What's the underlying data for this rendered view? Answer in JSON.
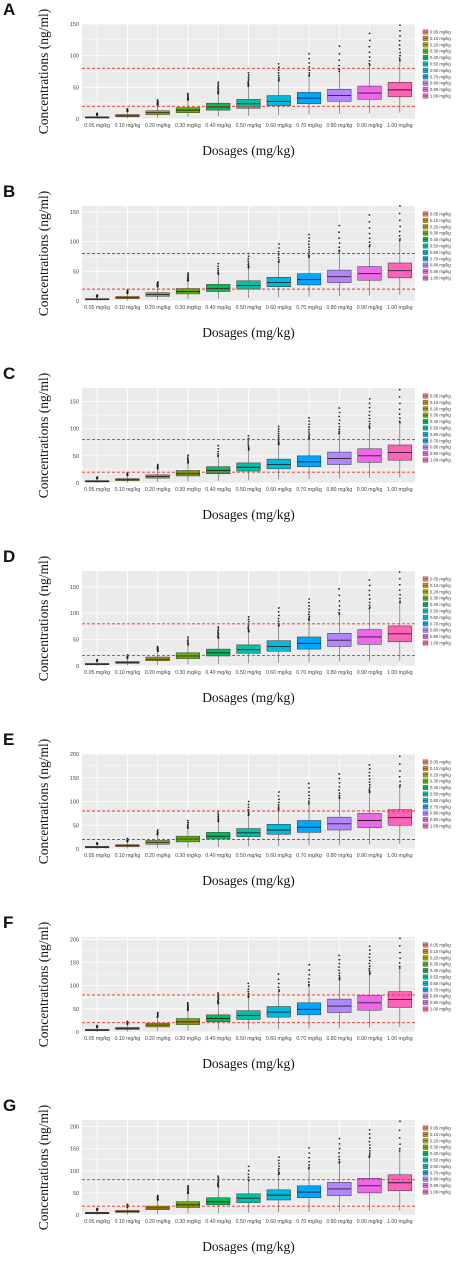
{
  "chart_data": [
    {
      "panel": "A",
      "type": "box",
      "xlabel": "Dosages (mg/kg)",
      "ylabel": "Concentrations (ng/ml)",
      "ylim": [
        0,
        150
      ],
      "yticks": [
        0,
        50,
        100,
        150
      ],
      "ref_lines": [
        20,
        80
      ],
      "categories": [
        "0.05 mg/kg",
        "0.10 mg/kg",
        "0.20 mg/kg",
        "0.30 mg/kg",
        "0.40 mg/kg",
        "0.50 mg/kg",
        "0.60 mg/kg",
        "0.70 mg/kg",
        "0.80 mg/kg",
        "0.90 mg/kg",
        "1.00 mg/kg"
      ],
      "boxes": [
        {
          "q1": 1.5,
          "median": 2.5,
          "q3": 3.5,
          "wlo": 0.5,
          "whi": 6,
          "outmax": 9
        },
        {
          "q1": 3.5,
          "median": 5,
          "q3": 7,
          "wlo": 1,
          "whi": 12,
          "outmax": 16
        },
        {
          "q1": 7,
          "median": 10,
          "q3": 13,
          "wlo": 2,
          "whi": 22,
          "outmax": 30
        },
        {
          "q1": 10,
          "median": 14,
          "q3": 18,
          "wlo": 3,
          "whi": 30,
          "outmax": 40
        },
        {
          "q1": 14,
          "median": 19,
          "q3": 25,
          "wlo": 4,
          "whi": 40,
          "outmax": 58
        },
        {
          "q1": 17,
          "median": 24,
          "q3": 31,
          "wlo": 5,
          "whi": 52,
          "outmax": 73
        },
        {
          "q1": 21,
          "median": 28,
          "q3": 37,
          "wlo": 6,
          "whi": 60,
          "outmax": 87
        },
        {
          "q1": 24,
          "median": 33,
          "q3": 42,
          "wlo": 7,
          "whi": 68,
          "outmax": 103
        },
        {
          "q1": 28,
          "median": 37,
          "q3": 47,
          "wlo": 8,
          "whi": 75,
          "outmax": 115
        },
        {
          "q1": 31,
          "median": 41,
          "q3": 52,
          "wlo": 9,
          "whi": 85,
          "outmax": 135
        },
        {
          "q1": 35,
          "median": 46,
          "q3": 58,
          "wlo": 10,
          "whi": 92,
          "outmax": 148
        }
      ]
    },
    {
      "panel": "B",
      "type": "box",
      "xlabel": "Dosages (mg/kg)",
      "ylabel": "Concentrations (ng/ml)",
      "ylim": [
        0,
        160
      ],
      "yticks": [
        0,
        50,
        100,
        150
      ],
      "ref_lines": [
        20,
        80
      ],
      "categories": [
        "0.05 mg/kg",
        "0.10 mg/kg",
        "0.20 mg/kg",
        "0.30 mg/kg",
        "0.40 mg/kg",
        "0.50 mg/kg",
        "0.60 mg/kg",
        "0.70 mg/kg",
        "0.80 mg/kg",
        "0.90 mg/kg",
        "1.00 mg/kg"
      ],
      "boxes": [
        {
          "q1": 2,
          "median": 3,
          "q3": 4,
          "wlo": 0.5,
          "whi": 7,
          "outmax": 10
        },
        {
          "q1": 4,
          "median": 5.5,
          "q3": 7.5,
          "wlo": 1,
          "whi": 13,
          "outmax": 18
        },
        {
          "q1": 8,
          "median": 11,
          "q3": 14,
          "wlo": 2,
          "whi": 24,
          "outmax": 32
        },
        {
          "q1": 12,
          "median": 16,
          "q3": 21,
          "wlo": 3,
          "whi": 34,
          "outmax": 47
        },
        {
          "q1": 16,
          "median": 21,
          "q3": 28,
          "wlo": 4,
          "whi": 45,
          "outmax": 63
        },
        {
          "q1": 20,
          "median": 26,
          "q3": 34,
          "wlo": 5,
          "whi": 56,
          "outmax": 80
        },
        {
          "q1": 24,
          "median": 31,
          "q3": 40,
          "wlo": 6,
          "whi": 65,
          "outmax": 96
        },
        {
          "q1": 27,
          "median": 36,
          "q3": 46,
          "wlo": 7,
          "whi": 74,
          "outmax": 112
        },
        {
          "q1": 31,
          "median": 41,
          "q3": 52,
          "wlo": 8,
          "whi": 83,
          "outmax": 127
        },
        {
          "q1": 35,
          "median": 46,
          "q3": 58,
          "wlo": 9,
          "whi": 92,
          "outmax": 145
        },
        {
          "q1": 39,
          "median": 51,
          "q3": 64,
          "wlo": 10,
          "whi": 102,
          "outmax": 160
        }
      ]
    },
    {
      "panel": "C",
      "type": "box",
      "xlabel": "Dosages (mg/kg)",
      "ylabel": "Concentrations (ng/ml)",
      "ylim": [
        0,
        175
      ],
      "yticks": [
        0,
        50,
        100,
        150
      ],
      "ref_lines": [
        20,
        80
      ],
      "categories": [
        "0.05 mg/kg",
        "0.10 mg/kg",
        "0.20 mg/kg",
        "0.30 mg/kg",
        "0.40 mg/kg",
        "0.50 mg/kg",
        "0.60 mg/kg",
        "0.70 mg/kg",
        "0.80 mg/kg",
        "0.90 mg/kg",
        "1.00 mg/kg"
      ],
      "boxes": [
        {
          "q1": 2,
          "median": 3,
          "q3": 4.5,
          "wlo": 0.5,
          "whi": 8,
          "outmax": 11
        },
        {
          "q1": 4.5,
          "median": 6,
          "q3": 8,
          "wlo": 1,
          "whi": 14,
          "outmax": 19
        },
        {
          "q1": 9,
          "median": 12,
          "q3": 15,
          "wlo": 2,
          "whi": 26,
          "outmax": 34
        },
        {
          "q1": 13,
          "median": 17,
          "q3": 23,
          "wlo": 3,
          "whi": 37,
          "outmax": 51
        },
        {
          "q1": 17,
          "median": 23,
          "q3": 30,
          "wlo": 4,
          "whi": 49,
          "outmax": 69
        },
        {
          "q1": 22,
          "median": 29,
          "q3": 37,
          "wlo": 5,
          "whi": 61,
          "outmax": 87
        },
        {
          "q1": 26,
          "median": 34,
          "q3": 44,
          "wlo": 6,
          "whi": 71,
          "outmax": 104
        },
        {
          "q1": 30,
          "median": 39,
          "q3": 50,
          "wlo": 7,
          "whi": 81,
          "outmax": 120
        },
        {
          "q1": 34,
          "median": 45,
          "q3": 57,
          "wlo": 8,
          "whi": 91,
          "outmax": 138
        },
        {
          "q1": 38,
          "median": 50,
          "q3": 63,
          "wlo": 9,
          "whi": 101,
          "outmax": 155
        },
        {
          "q1": 42,
          "median": 56,
          "q3": 70,
          "wlo": 10,
          "whi": 111,
          "outmax": 172
        }
      ]
    },
    {
      "panel": "D",
      "type": "box",
      "xlabel": "Dosages (mg/kg)",
      "ylabel": "Concentrations (ng/ml)",
      "ylim": [
        0,
        180
      ],
      "yticks": [
        0,
        50,
        100,
        150
      ],
      "ref_lines": [
        20,
        80
      ],
      "categories": [
        "0.05 mg/kg",
        "0.10 mg/kg",
        "0.20 mg/kg",
        "0.30 mg/kg",
        "0.40 mg/kg",
        "0.50 mg/kg",
        "0.60 mg/kg",
        "0.70 mg/kg",
        "0.80 mg/kg",
        "0.90 mg/kg",
        "1.00 mg/kg"
      ],
      "boxes": [
        {
          "q1": 2.5,
          "median": 3.5,
          "q3": 5,
          "wlo": 0.5,
          "whi": 9,
          "outmax": 12
        },
        {
          "q1": 5,
          "median": 6.5,
          "q3": 8.5,
          "wlo": 1,
          "whi": 15,
          "outmax": 21
        },
        {
          "q1": 10,
          "median": 13,
          "q3": 17,
          "wlo": 2,
          "whi": 28,
          "outmax": 37
        },
        {
          "q1": 14,
          "median": 19,
          "q3": 25,
          "wlo": 3,
          "whi": 40,
          "outmax": 55
        },
        {
          "q1": 19,
          "median": 25,
          "q3": 32,
          "wlo": 4,
          "whi": 53,
          "outmax": 74
        },
        {
          "q1": 24,
          "median": 31,
          "q3": 40,
          "wlo": 5,
          "whi": 65,
          "outmax": 93
        },
        {
          "q1": 28,
          "median": 37,
          "q3": 48,
          "wlo": 6,
          "whi": 76,
          "outmax": 110
        },
        {
          "q1": 32,
          "median": 43,
          "q3": 55,
          "wlo": 7,
          "whi": 87,
          "outmax": 127
        },
        {
          "q1": 37,
          "median": 49,
          "q3": 62,
          "wlo": 8,
          "whi": 98,
          "outmax": 146
        },
        {
          "q1": 41,
          "median": 55,
          "q3": 69,
          "wlo": 9,
          "whi": 109,
          "outmax": 163
        },
        {
          "q1": 46,
          "median": 61,
          "q3": 76,
          "wlo": 10,
          "whi": 120,
          "outmax": 178
        }
      ]
    },
    {
      "panel": "E",
      "type": "box",
      "xlabel": "Dosages (mg/kg)",
      "ylabel": "Concentrations (ng/ml)",
      "ylim": [
        0,
        200
      ],
      "yticks": [
        0,
        50,
        100,
        150,
        200
      ],
      "ref_lines": [
        20,
        80
      ],
      "categories": [
        "0.05 mg/kg",
        "0.10 mg/kg",
        "0.20 mg/kg",
        "0.30 mg/kg",
        "0.40 mg/kg",
        "0.50 mg/kg",
        "0.60 mg/kg",
        "0.70 mg/kg",
        "0.80 mg/kg",
        "0.90 mg/kg",
        "1.00 mg/kg"
      ],
      "boxes": [
        {
          "q1": 2.5,
          "median": 4,
          "q3": 5.5,
          "wlo": 0.5,
          "whi": 10,
          "outmax": 13
        },
        {
          "q1": 5,
          "median": 7,
          "q3": 9,
          "wlo": 1,
          "whi": 16,
          "outmax": 22
        },
        {
          "q1": 10,
          "median": 14,
          "q3": 18,
          "wlo": 2,
          "whi": 30,
          "outmax": 40
        },
        {
          "q1": 15,
          "median": 21,
          "q3": 27,
          "wlo": 3,
          "whi": 44,
          "outmax": 60
        },
        {
          "q1": 21,
          "median": 27,
          "q3": 35,
          "wlo": 4,
          "whi": 58,
          "outmax": 80
        },
        {
          "q1": 26,
          "median": 34,
          "q3": 43,
          "wlo": 5,
          "whi": 71,
          "outmax": 100
        },
        {
          "q1": 31,
          "median": 40,
          "q3": 52,
          "wlo": 6,
          "whi": 83,
          "outmax": 120
        },
        {
          "q1": 35,
          "median": 46,
          "q3": 60,
          "wlo": 7,
          "whi": 95,
          "outmax": 138
        },
        {
          "q1": 40,
          "median": 53,
          "q3": 67,
          "wlo": 8,
          "whi": 107,
          "outmax": 158
        },
        {
          "q1": 45,
          "median": 60,
          "q3": 75,
          "wlo": 9,
          "whi": 119,
          "outmax": 177
        },
        {
          "q1": 50,
          "median": 66,
          "q3": 83,
          "wlo": 10,
          "whi": 131,
          "outmax": 195
        }
      ]
    },
    {
      "panel": "F",
      "type": "box",
      "xlabel": "Dosages (mg/kg)",
      "ylabel": "Concentrations (ng/ml)",
      "ylim": [
        0,
        205
      ],
      "yticks": [
        0,
        50,
        100,
        150,
        200
      ],
      "ref_lines": [
        20,
        80
      ],
      "categories": [
        "0.05 mg/kg",
        "0.10 mg/kg",
        "0.20 mg/kg",
        "0.30 mg/kg",
        "0.40 mg/kg",
        "0.50 mg/kg",
        "0.60 mg/kg",
        "0.70 mg/kg",
        "0.80 mg/kg",
        "0.90 mg/kg",
        "1.00 mg/kg"
      ],
      "boxes": [
        {
          "q1": 3,
          "median": 4,
          "q3": 6,
          "wlo": 0.5,
          "whi": 10,
          "outmax": 14
        },
        {
          "q1": 5.5,
          "median": 7.5,
          "q3": 10,
          "wlo": 1,
          "whi": 17,
          "outmax": 23
        },
        {
          "q1": 11,
          "median": 15,
          "q3": 19,
          "wlo": 2,
          "whi": 32,
          "outmax": 42
        },
        {
          "q1": 16,
          "median": 22,
          "q3": 29,
          "wlo": 3,
          "whi": 47,
          "outmax": 63
        },
        {
          "q1": 22,
          "median": 29,
          "q3": 37,
          "wlo": 4,
          "whi": 61,
          "outmax": 84
        },
        {
          "q1": 27,
          "median": 36,
          "q3": 46,
          "wlo": 5,
          "whi": 75,
          "outmax": 105
        },
        {
          "q1": 32,
          "median": 43,
          "q3": 55,
          "wlo": 6,
          "whi": 88,
          "outmax": 125
        },
        {
          "q1": 37,
          "median": 49,
          "q3": 63,
          "wlo": 7,
          "whi": 100,
          "outmax": 145
        },
        {
          "q1": 42,
          "median": 56,
          "q3": 71,
          "wlo": 8,
          "whi": 113,
          "outmax": 165
        },
        {
          "q1": 47,
          "median": 63,
          "q3": 79,
          "wlo": 9,
          "whi": 125,
          "outmax": 185
        },
        {
          "q1": 53,
          "median": 70,
          "q3": 87,
          "wlo": 10,
          "whi": 138,
          "outmax": 202
        }
      ]
    },
    {
      "panel": "G",
      "type": "box",
      "xlabel": "Dosages (mg/kg)",
      "ylabel": "Concentrations (ng/ml)",
      "ylim": [
        0,
        215
      ],
      "yticks": [
        0,
        50,
        100,
        150,
        200
      ],
      "ref_lines": [
        20,
        80
      ],
      "categories": [
        "0.05 mg/kg",
        "0.10 mg/kg",
        "0.20 mg/kg",
        "0.30 mg/kg",
        "0.40 mg/kg",
        "0.50 mg/kg",
        "0.60 mg/kg",
        "0.70 mg/kg",
        "0.80 mg/kg",
        "0.90 mg/kg",
        "1.00 mg/kg"
      ],
      "boxes": [
        {
          "q1": 3,
          "median": 4.5,
          "q3": 6,
          "wlo": 0.5,
          "whi": 11,
          "outmax": 15
        },
        {
          "q1": 6,
          "median": 8,
          "q3": 10.5,
          "wlo": 1,
          "whi": 18,
          "outmax": 24
        },
        {
          "q1": 12,
          "median": 16,
          "q3": 20,
          "wlo": 2,
          "whi": 34,
          "outmax": 44
        },
        {
          "q1": 17,
          "median": 23,
          "q3": 30,
          "wlo": 3,
          "whi": 49,
          "outmax": 66
        },
        {
          "q1": 23,
          "median": 30,
          "q3": 39,
          "wlo": 4,
          "whi": 64,
          "outmax": 88
        },
        {
          "q1": 28,
          "median": 38,
          "q3": 48,
          "wlo": 5,
          "whi": 78,
          "outmax": 110
        },
        {
          "q1": 34,
          "median": 45,
          "q3": 57,
          "wlo": 6,
          "whi": 92,
          "outmax": 131
        },
        {
          "q1": 39,
          "median": 52,
          "q3": 66,
          "wlo": 7,
          "whi": 105,
          "outmax": 152
        },
        {
          "q1": 44,
          "median": 59,
          "q3": 74,
          "wlo": 8,
          "whi": 118,
          "outmax": 173
        },
        {
          "q1": 50,
          "median": 66,
          "q3": 83,
          "wlo": 9,
          "whi": 131,
          "outmax": 193
        },
        {
          "q1": 55,
          "median": 73,
          "q3": 91,
          "wlo": 10,
          "whi": 145,
          "outmax": 212
        }
      ]
    }
  ],
  "colors": [
    "#F8766D",
    "#DB8E00",
    "#AEA200",
    "#64B200",
    "#00BD5C",
    "#00C1A7",
    "#00BADE",
    "#00A6FF",
    "#B385FF",
    "#EF67EB",
    "#FF63B6"
  ],
  "ref_line_color": "#E8312A",
  "panel_bg": "#EBEBEB",
  "grid_color": "#FFFFFF"
}
